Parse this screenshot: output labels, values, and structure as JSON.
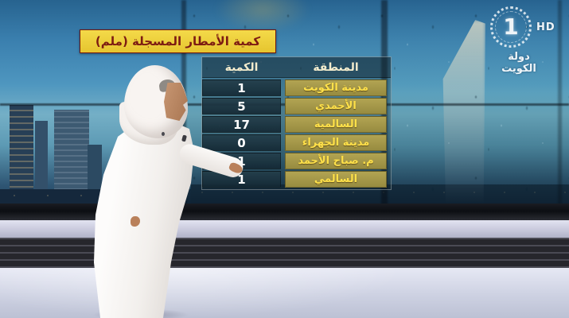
{
  "broadcast": {
    "channel_number": "1",
    "hd_badge": "HD",
    "channel_name": "دولة الكويت"
  },
  "title_box": {
    "text": "كمية الأمطار المسجلة (ملم)"
  },
  "table": {
    "headers": {
      "quantity": "الكمية",
      "region": "المنطقة"
    },
    "rows": [
      {
        "region": "مدينة الكويت",
        "value": "1"
      },
      {
        "region": "الأحمدي",
        "value": "5"
      },
      {
        "region": "السالمية",
        "value": "17"
      },
      {
        "region": "مدينة الجهراء",
        "value": "0"
      },
      {
        "region": "م. صباح الأحمد",
        "value": "1"
      },
      {
        "region": "السالمي",
        "value": "1"
      }
    ]
  },
  "colors": {
    "title_background": "#eed33c",
    "title_text": "#7d1b12",
    "region_cell": "#a79a4c",
    "region_text": "#ffe14a",
    "value_cell": "#24404c",
    "value_text": "#ffffff"
  }
}
